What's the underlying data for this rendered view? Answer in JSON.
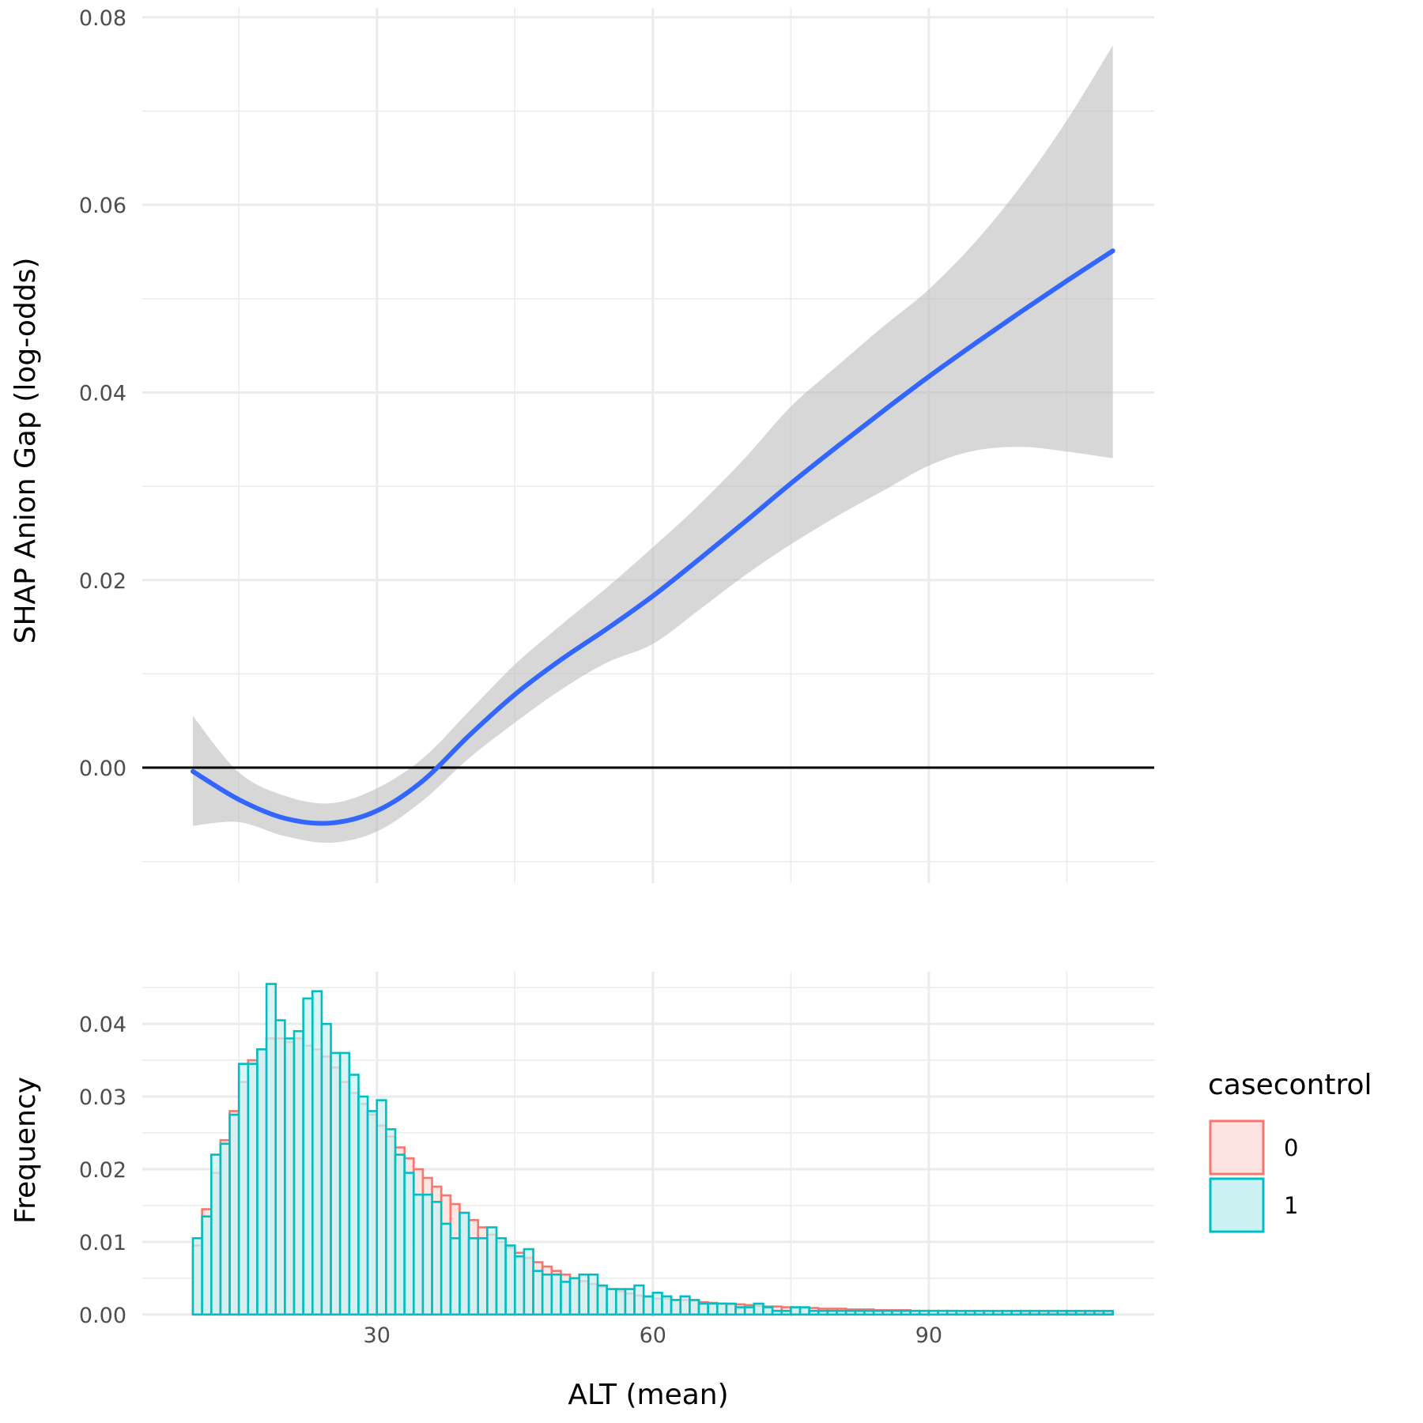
{
  "chart_data": [
    {
      "type": "line",
      "panel": "top",
      "xlabel": "",
      "ylabel": "SHAP Anion Gap (log-odds)",
      "xlim": [
        4.5,
        114.5
      ],
      "ylim": [
        -0.0123,
        0.081
      ],
      "xticks": [
        30,
        60,
        90
      ],
      "yticks": [
        0.0,
        0.02,
        0.04,
        0.06,
        0.08
      ],
      "ytick_labels": [
        "0.00",
        "0.02",
        "0.04",
        "0.06",
        "0.08"
      ],
      "grid": true,
      "reference_line": {
        "y": 0,
        "color": "#000000"
      },
      "series": [
        {
          "type": "line",
          "color": "#3366FF",
          "x": [
            10,
            15,
            20,
            25,
            30,
            35,
            40,
            45,
            50,
            55,
            60,
            65,
            70,
            75,
            80,
            85,
            90,
            95,
            100,
            105,
            110
          ],
          "y": [
            -0.0004,
            -0.0034,
            -0.0054,
            -0.0059,
            -0.0046,
            -0.0014,
            0.0034,
            0.0078,
            0.0115,
            0.0148,
            0.0183,
            0.0222,
            0.0262,
            0.0303,
            0.0342,
            0.038,
            0.0417,
            0.0452,
            0.0486,
            0.0519,
            0.0551
          ]
        },
        {
          "type": "band",
          "color": "#bdbdbd",
          "x": [
            10,
            15,
            20,
            25,
            30,
            35,
            40,
            45,
            50,
            55,
            60,
            65,
            70,
            75,
            80,
            85,
            90,
            95,
            100,
            105,
            110
          ],
          "lower": [
            -0.0062,
            -0.0058,
            -0.0073,
            -0.008,
            -0.0068,
            -0.0035,
            0.001,
            0.0048,
            0.0083,
            0.0112,
            0.0132,
            0.0168,
            0.0205,
            0.0238,
            0.0268,
            0.0295,
            0.0322,
            0.0338,
            0.0342,
            0.0337,
            0.033
          ],
          "upper": [
            0.0055,
            -0.0005,
            -0.003,
            -0.0038,
            -0.0022,
            0.001,
            0.006,
            0.011,
            0.0152,
            0.0192,
            0.0235,
            0.028,
            0.033,
            0.0385,
            0.0428,
            0.047,
            0.051,
            0.056,
            0.062,
            0.069,
            0.077
          ]
        }
      ]
    },
    {
      "type": "bar",
      "panel": "bottom",
      "xlabel": "ALT (mean)",
      "ylabel": "Frequency",
      "xlim": [
        4.5,
        114.5
      ],
      "ylim": [
        -0.00035,
        0.0472
      ],
      "xticks": [
        30,
        60,
        90
      ],
      "xtick_labels": [
        "30",
        "60",
        "90"
      ],
      "yticks": [
        0.0,
        0.01,
        0.02,
        0.03,
        0.04
      ],
      "ytick_labels": [
        "0.00",
        "0.01",
        "0.02",
        "0.03",
        "0.04"
      ],
      "grid": true,
      "bin_start": 10,
      "bin_width": 1,
      "legend": {
        "title": "casecontrol",
        "position": "right",
        "entries": [
          {
            "label": "0",
            "color": "#F8766D",
            "fill": "#FDE3E1"
          },
          {
            "label": "1",
            "color": "#00BFC4",
            "fill": "#CCF2F3"
          }
        ]
      },
      "series": [
        {
          "name": "0",
          "color": "#F8766D",
          "values": [
            0.0095,
            0.0145,
            0.0195,
            0.024,
            0.028,
            0.032,
            0.035,
            0.0365,
            0.038,
            0.038,
            0.0375,
            0.038,
            0.037,
            0.0365,
            0.0355,
            0.034,
            0.032,
            0.0305,
            0.029,
            0.0275,
            0.026,
            0.0245,
            0.023,
            0.0215,
            0.02,
            0.0188,
            0.0176,
            0.0164,
            0.0152,
            0.014,
            0.013,
            0.012,
            0.011,
            0.01,
            0.0092,
            0.0085,
            0.0078,
            0.0072,
            0.0066,
            0.006,
            0.0055,
            0.005,
            0.0046,
            0.0042,
            0.0038,
            0.0035,
            0.0032,
            0.0029,
            0.0026,
            0.0024,
            0.0022,
            0.0022,
            0.002,
            0.002,
            0.0019,
            0.0017,
            0.0016,
            0.0015,
            0.0014,
            0.0014,
            0.0013,
            0.0012,
            0.0011,
            0.0011,
            0.001,
            0.001,
            0.0009,
            0.0009,
            0.0008,
            0.0008,
            0.0008,
            0.0007,
            0.0007,
            0.0007,
            0.0006,
            0.0006,
            0.0006,
            0.0006,
            0.0005,
            0.0005,
            0.0005,
            0.0005,
            0.0005,
            0.0004,
            0.0004,
            0.0004,
            0.0004,
            0.0004,
            0.0004,
            0.0004,
            0.0003,
            0.0003,
            0.0003,
            0.0003,
            0.0003,
            0.0003,
            0.0003,
            0.0003,
            0.0003,
            0.0003
          ]
        },
        {
          "name": "1",
          "color": "#00BFC4",
          "values": [
            0.0105,
            0.0135,
            0.022,
            0.0235,
            0.0275,
            0.0345,
            0.0345,
            0.0365,
            0.0455,
            0.0405,
            0.038,
            0.039,
            0.0435,
            0.0445,
            0.04,
            0.036,
            0.036,
            0.033,
            0.03,
            0.028,
            0.0295,
            0.0255,
            0.022,
            0.0195,
            0.0165,
            0.0165,
            0.0155,
            0.0125,
            0.0105,
            0.014,
            0.0105,
            0.0105,
            0.012,
            0.0105,
            0.0095,
            0.008,
            0.009,
            0.006,
            0.0055,
            0.0055,
            0.0045,
            0.005,
            0.0055,
            0.0055,
            0.004,
            0.0035,
            0.0035,
            0.0035,
            0.004,
            0.0025,
            0.003,
            0.0025,
            0.002,
            0.0025,
            0.002,
            0.0015,
            0.0015,
            0.0015,
            0.0015,
            0.001,
            0.001,
            0.0015,
            0.001,
            0.0005,
            0.0005,
            0.001,
            0.001,
            0.0005,
            0.0005,
            0.0005,
            0.0005,
            0.0005,
            0.0005,
            0.0005,
            0.0005,
            0.0005,
            0.0005,
            0.0005,
            0.0005,
            0.0005,
            0.0005,
            0.0005,
            0.0005,
            0.0005,
            0.0005,
            0.0005,
            0.0005,
            0.0005,
            0.0005,
            0.0005,
            0.0005,
            0.0005,
            0.0005,
            0.0005,
            0.0005,
            0.0005,
            0.0005,
            0.0005,
            0.0005,
            0.0005
          ]
        }
      ]
    }
  ]
}
